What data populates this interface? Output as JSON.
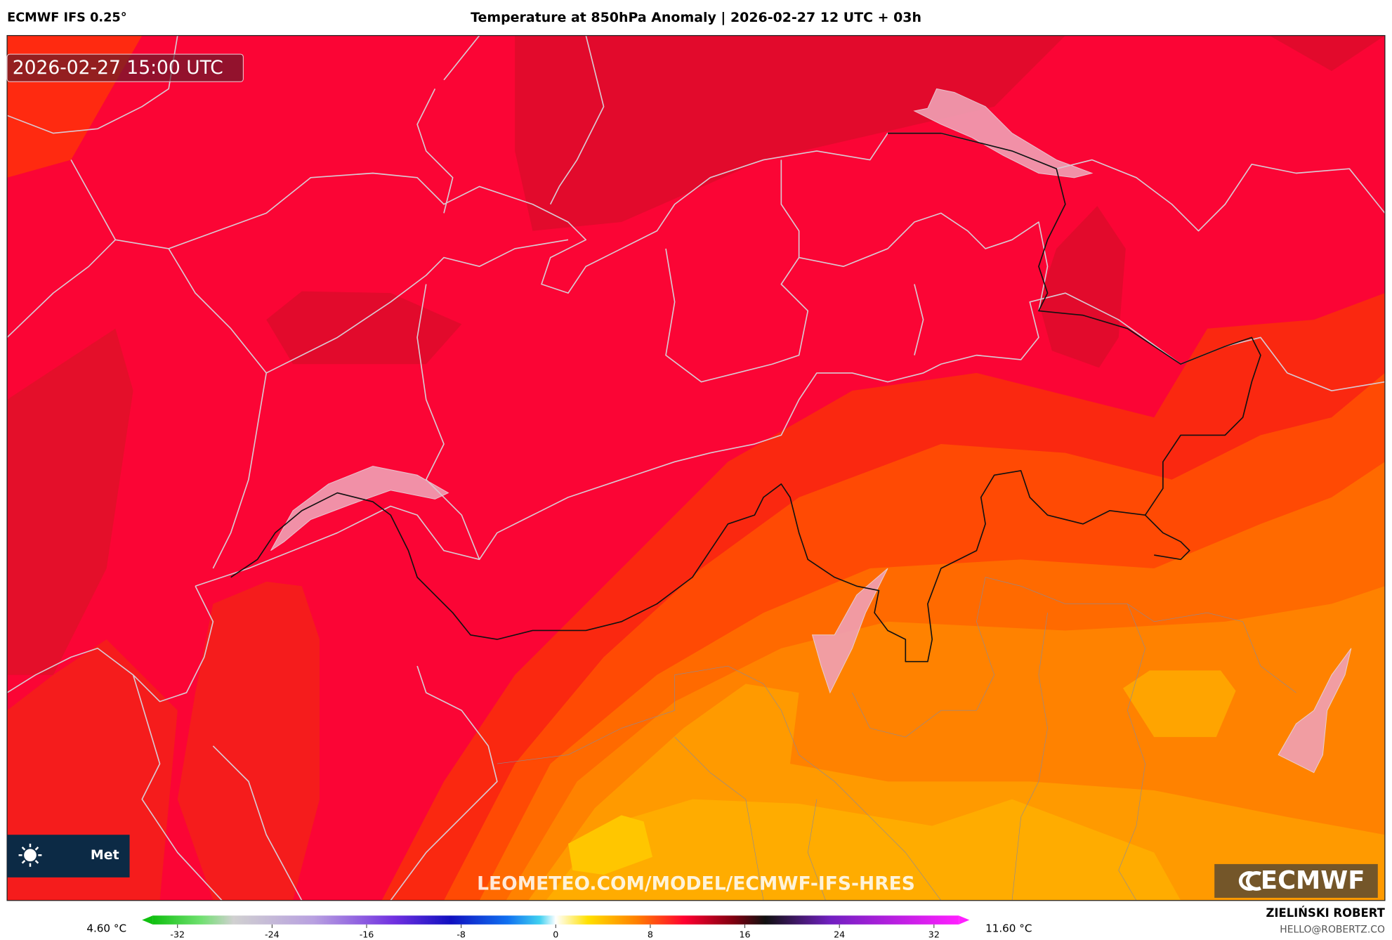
{
  "header": {
    "model": "ECMWF IFS 0.25°",
    "title": "Temperature at 850hPa Anomaly | 2026-02-27 12 UTC + 03h"
  },
  "map": {
    "timestamp": "2026-02-27 15:00 UTC",
    "watermark": "LEOMETEO.COM/MODEL/ECMWF-IFS-HRES",
    "logo": "ECMWF",
    "badge": "Met"
  },
  "colorbar": {
    "min_label": "4.60 °C",
    "max_label": "11.60 °C",
    "lim": [
      -35,
      35
    ],
    "ticks": [
      -32,
      -24,
      -16,
      -8,
      0,
      8,
      16,
      24,
      32
    ]
  },
  "footer": {
    "author": "ZIELIŃSKI ROBERT",
    "email": "HELLO@ROBERTZ.CO"
  }
}
